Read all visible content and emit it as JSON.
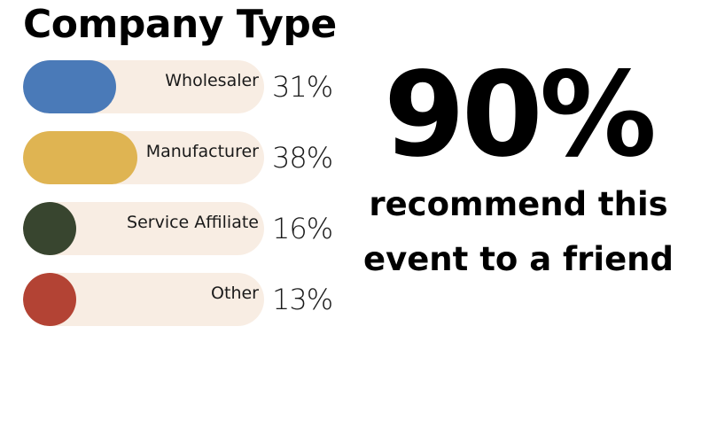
{
  "chart_data": {
    "type": "bar",
    "orientation": "horizontal",
    "title": "Company Type",
    "categories": [
      "Wholesaler",
      "Manufacturer",
      "Service Affiliate",
      "Other"
    ],
    "values": [
      31,
      38,
      16,
      13
    ],
    "value_labels": [
      "31%",
      "38%",
      "16%",
      "13%"
    ],
    "unit": "%",
    "colors": [
      "#4a7ab8",
      "#dfb452",
      "#38452f",
      "#b34334"
    ],
    "track_color": "#f8ede3",
    "xlim": [
      0,
      80
    ]
  },
  "highlight": {
    "value": "90%",
    "caption_line1": "recommend this",
    "caption_line2": "event to a friend"
  }
}
